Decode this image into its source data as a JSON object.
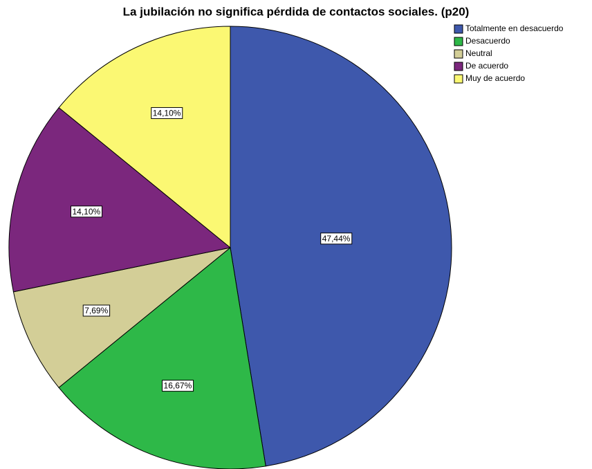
{
  "chart_data": {
    "type": "pie",
    "title": "La jubilación no significa pérdida de contactos sociales. (p20)",
    "categories": [
      "Totalmente en desacuerdo",
      "Desacuerdo",
      "Neutral",
      "De acuerdo",
      "Muy de acuerdo"
    ],
    "values": [
      47.44,
      16.67,
      7.69,
      14.1,
      14.1
    ],
    "value_labels": [
      "47,44%",
      "16,67%",
      "7,69%",
      "14,10%",
      "14,10%"
    ],
    "colors": [
      "#3e58ac",
      "#2eb848",
      "#d3ce97",
      "#7b277d",
      "#fbf873"
    ],
    "legend": "top-right"
  }
}
